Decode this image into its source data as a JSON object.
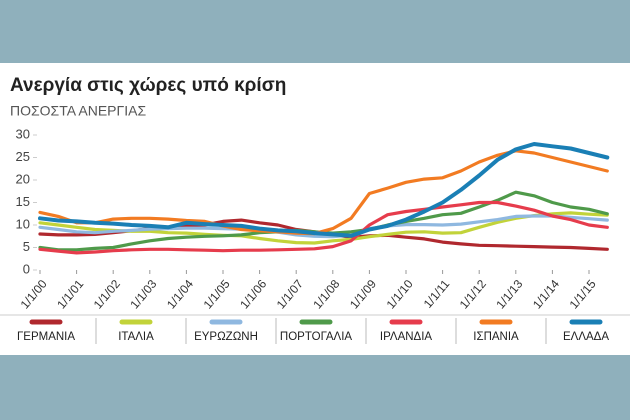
{
  "chart_data": {
    "type": "line",
    "title": "Ανεργία στις χώρες υπό κρίση",
    "subtitle": "ΠΟΣΟΣΤΑ ΑΝΕΡΓΙΑΣ",
    "x": [
      "1/1/00",
      "1/7/00",
      "1/1/01",
      "1/7/01",
      "1/1/02",
      "1/7/02",
      "1/1/03",
      "1/7/03",
      "1/1/04",
      "1/7/04",
      "1/1/05",
      "1/7/05",
      "1/1/06",
      "1/7/06",
      "1/1/07",
      "1/7/07",
      "1/1/08",
      "1/7/08",
      "1/1/09",
      "1/7/09",
      "1/1/10",
      "1/7/10",
      "1/1/11",
      "1/7/11",
      "1/1/12",
      "1/7/12",
      "1/1/13",
      "1/7/13",
      "1/1/14",
      "1/7/14",
      "1/1/15",
      "1/7/15"
    ],
    "xticks": [
      "1/1/00",
      "1/1/01",
      "1/1/02",
      "1/1/03",
      "1/1/04",
      "1/1/05",
      "1/1/06",
      "1/1/07",
      "1/1/08",
      "1/1/09",
      "1/1/10",
      "1/1/11",
      "1/1/12",
      "1/1/13",
      "1/1/14",
      "1/1/15"
    ],
    "ylim": [
      0,
      30
    ],
    "yticks": [
      0,
      5,
      10,
      15,
      20,
      25,
      30
    ],
    "grid": false,
    "series": [
      {
        "name": "ΓΕΡΜΑΝΙΑ",
        "color": "#b0282e",
        "values": [
          8,
          7.8,
          7.8,
          7.9,
          8.3,
          8.7,
          9.2,
          9.5,
          9.8,
          10,
          10.8,
          11.1,
          10.5,
          10,
          9,
          8.5,
          7.8,
          7.3,
          7.6,
          7.7,
          7.3,
          6.9,
          6.2,
          5.8,
          5.5,
          5.4,
          5.3,
          5.2,
          5.1,
          5,
          4.8,
          4.6
        ]
      },
      {
        "name": "ΙΤΑΛΙΑ",
        "color": "#c2d33a",
        "values": [
          10.5,
          10,
          9.5,
          9,
          8.8,
          8.6,
          8.6,
          8.3,
          8.2,
          7.9,
          7.7,
          7.6,
          7,
          6.5,
          6.1,
          6,
          6.5,
          6.8,
          7.4,
          7.9,
          8.4,
          8.5,
          8.2,
          8.3,
          9.5,
          10.6,
          11.5,
          12.1,
          12.5,
          12.7,
          12.4,
          12.2
        ]
      },
      {
        "name": "ΕΥΡΩΖΩΝΗ",
        "color": "#8fb8e0",
        "values": [
          9.5,
          9,
          8.5,
          8.3,
          8.6,
          8.8,
          9.1,
          9.2,
          9.3,
          9.3,
          9.2,
          9.1,
          8.9,
          8.4,
          7.8,
          7.5,
          7.4,
          7.7,
          9.2,
          9.8,
          10.1,
          10.1,
          10,
          10.2,
          10.7,
          11.2,
          11.9,
          12,
          12,
          11.7,
          11.4,
          11.1
        ]
      },
      {
        "name": "ΠΟΡΤΟΓΑΛΙΑ",
        "color": "#4f9a4a",
        "values": [
          5,
          4.5,
          4.5,
          4.8,
          5,
          5.8,
          6.5,
          7,
          7.3,
          7.5,
          7.6,
          7.8,
          8.3,
          8.5,
          8.8,
          8.5,
          8.2,
          8.5,
          9,
          10,
          10.8,
          11.5,
          12.3,
          12.6,
          14,
          15.5,
          17.3,
          16.5,
          15,
          14,
          13.5,
          12.5
        ]
      },
      {
        "name": "ΙΡΛΑΝΔΙΑ",
        "color": "#e63c4c",
        "values": [
          4.6,
          4.2,
          3.8,
          4,
          4.3,
          4.5,
          4.6,
          4.6,
          4.5,
          4.4,
          4.3,
          4.4,
          4.4,
          4.5,
          4.6,
          4.7,
          5.2,
          6.5,
          10,
          12.3,
          13,
          13.5,
          14,
          14.5,
          15,
          15,
          14.2,
          13.3,
          12,
          11.2,
          10,
          9.5
        ]
      },
      {
        "name": "ΙΣΠΑΝΙΑ",
        "color": "#f27b22",
        "values": [
          12.8,
          11.9,
          10.5,
          10.5,
          11.3,
          11.5,
          11.5,
          11.3,
          11,
          10.8,
          9.8,
          9,
          8.7,
          8.5,
          8.2,
          8.1,
          9.2,
          11.5,
          17,
          18.2,
          19.5,
          20.2,
          20.5,
          22,
          24,
          25.5,
          26.5,
          26,
          25,
          24,
          23,
          22
        ]
      },
      {
        "name": "ΕΛΛΑΔΑ",
        "color": "#1a7fb5",
        "values": [
          11.5,
          11,
          10.8,
          10.5,
          10.3,
          10,
          9.8,
          9.5,
          10.5,
          10.2,
          10,
          9.8,
          9.2,
          8.8,
          8.6,
          8.2,
          7.9,
          7.6,
          9,
          9.8,
          11.2,
          13,
          15,
          17.8,
          21,
          24.5,
          26.8,
          28,
          27.5,
          27,
          26,
          25
        ]
      }
    ]
  }
}
